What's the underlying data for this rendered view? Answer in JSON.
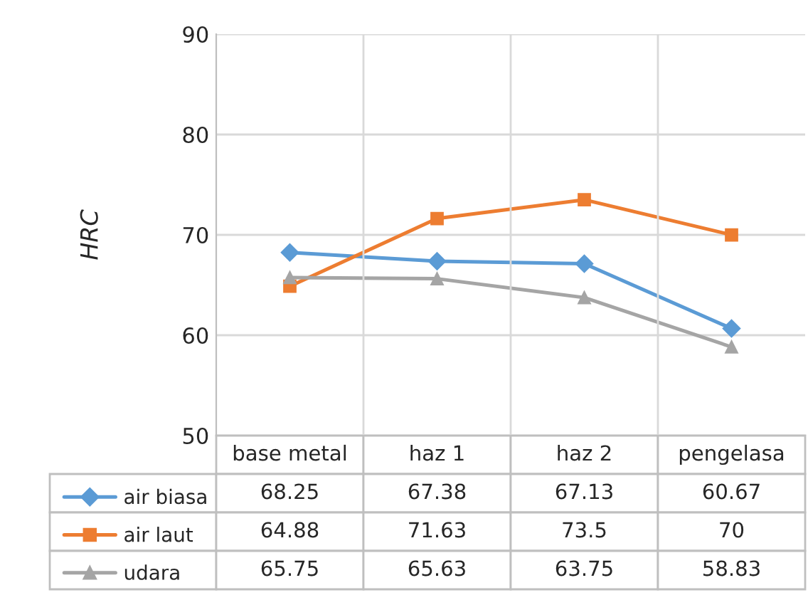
{
  "chart_data": {
    "type": "line",
    "ylabel": "HRC",
    "categories": [
      "base metal",
      "haz 1",
      "haz 2",
      "pengelasa"
    ],
    "series": [
      {
        "name": "air biasa",
        "color": "#5b9bd5",
        "marker": "diamond",
        "values": [
          68.25,
          67.38,
          67.13,
          60.67
        ]
      },
      {
        "name": "air laut",
        "color": "#ed7d31",
        "marker": "square",
        "values": [
          64.88,
          71.63,
          73.5,
          70
        ]
      },
      {
        "name": "udara",
        "color": "#a5a5a5",
        "marker": "triangle",
        "values": [
          65.75,
          65.63,
          63.75,
          58.83
        ]
      }
    ],
    "ylim": [
      50,
      90
    ],
    "yticks": [
      50,
      60,
      70,
      80,
      90
    ],
    "grid": true,
    "legend": "bottom left",
    "data_labels": true
  }
}
